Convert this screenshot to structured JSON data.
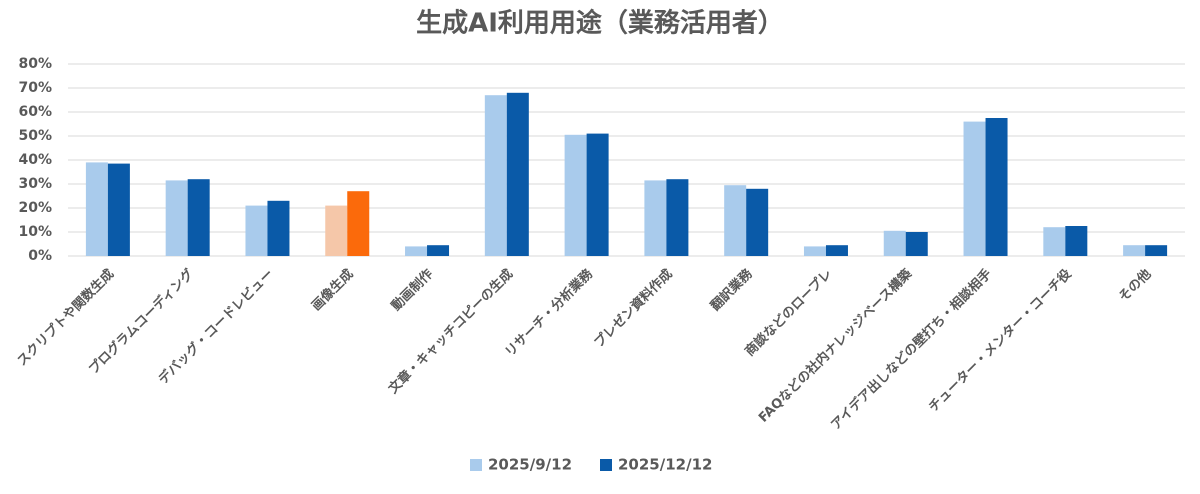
{
  "chart_data": {
    "type": "bar",
    "title": "生成AI利用用途（業務活用者）",
    "categories": [
      "スクリプトや関数生成",
      "プログラムコーディング",
      "デバッグ・コードレビュー",
      "画像生成",
      "動画制作",
      "文章・キャッチコピーの生成",
      "リサーチ・分析業務",
      "プレゼン資料作成",
      "翻訳業務",
      "商談などのロープレ",
      "FAQなどの社内ナレッジベース構築",
      "アイデア出しなどの壁打ち・相談相手",
      "チューター・メンター・コーチ役",
      "その他"
    ],
    "series": [
      {
        "name": "2025/9/12",
        "color": "#a9cbec",
        "colors": [
          "#a9cbec",
          "#a9cbec",
          "#a9cbec",
          "#f5c7a9",
          "#a9cbec",
          "#a9cbec",
          "#a9cbec",
          "#a9cbec",
          "#a9cbec",
          "#a9cbec",
          "#a9cbec",
          "#a9cbec",
          "#a9cbec",
          "#a9cbec"
        ],
        "values": [
          39,
          31.5,
          21,
          21,
          4,
          67,
          50.5,
          31.5,
          29.5,
          4,
          10.5,
          56,
          12,
          4.5
        ]
      },
      {
        "name": "2025/12/12",
        "color": "#0a5aa8",
        "colors": [
          "#0a5aa8",
          "#0a5aa8",
          "#0a5aa8",
          "#fb6a0b",
          "#0a5aa8",
          "#0a5aa8",
          "#0a5aa8",
          "#0a5aa8",
          "#0a5aa8",
          "#0a5aa8",
          "#0a5aa8",
          "#0a5aa8",
          "#0a5aa8",
          "#0a5aa8"
        ],
        "values": [
          38.5,
          32,
          23,
          27,
          4.5,
          68,
          51,
          32,
          28,
          4.5,
          10,
          57.5,
          12.5,
          4.5
        ]
      }
    ],
    "ylim": [
      0,
      80
    ],
    "yticks": [
      {
        "value": 0,
        "label": "0%"
      },
      {
        "value": 10,
        "label": "10%"
      },
      {
        "value": 20,
        "label": "20%"
      },
      {
        "value": 30,
        "label": "30%"
      },
      {
        "value": 40,
        "label": "40%"
      },
      {
        "value": 50,
        "label": "50%"
      },
      {
        "value": 60,
        "label": "60%"
      },
      {
        "value": 70,
        "label": "70%"
      },
      {
        "value": 80,
        "label": "80%"
      }
    ],
    "grid": true,
    "legend": "bottom"
  }
}
